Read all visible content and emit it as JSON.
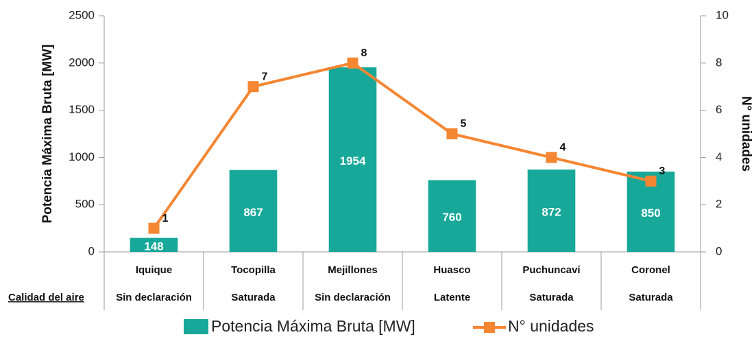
{
  "chart_data": {
    "type": "bar",
    "categories": [
      "Iquique",
      "Tocopilla",
      "Mejillones",
      "Huasco",
      "Puchuncaví",
      "Coronel"
    ],
    "row_label": "Calidad del aire",
    "air_quality": [
      "Sin declaración",
      "Saturada",
      "Sin declaración",
      "Latente",
      "Saturada",
      "Saturada"
    ],
    "series": [
      {
        "name": "Potencia Máxima Bruta [MW]",
        "type": "bar",
        "color": "#17a89a",
        "values": [
          148,
          867,
          1954,
          760,
          872,
          850
        ]
      },
      {
        "name": "N° unidades",
        "type": "line",
        "axis": "y2",
        "color": "#f58632",
        "values": [
          1,
          7,
          8,
          5,
          4,
          3
        ]
      }
    ],
    "y_label": "Potencia Máxima Bruta [MW]",
    "y2_label": "N° unidades",
    "ylim": [
      0,
      2500
    ],
    "yticks": [
      0,
      500,
      1000,
      1500,
      2000,
      2500
    ],
    "y2lim": [
      0,
      10
    ],
    "y2ticks": [
      0,
      2,
      4,
      6,
      8,
      10
    ],
    "legend": "bottom"
  }
}
